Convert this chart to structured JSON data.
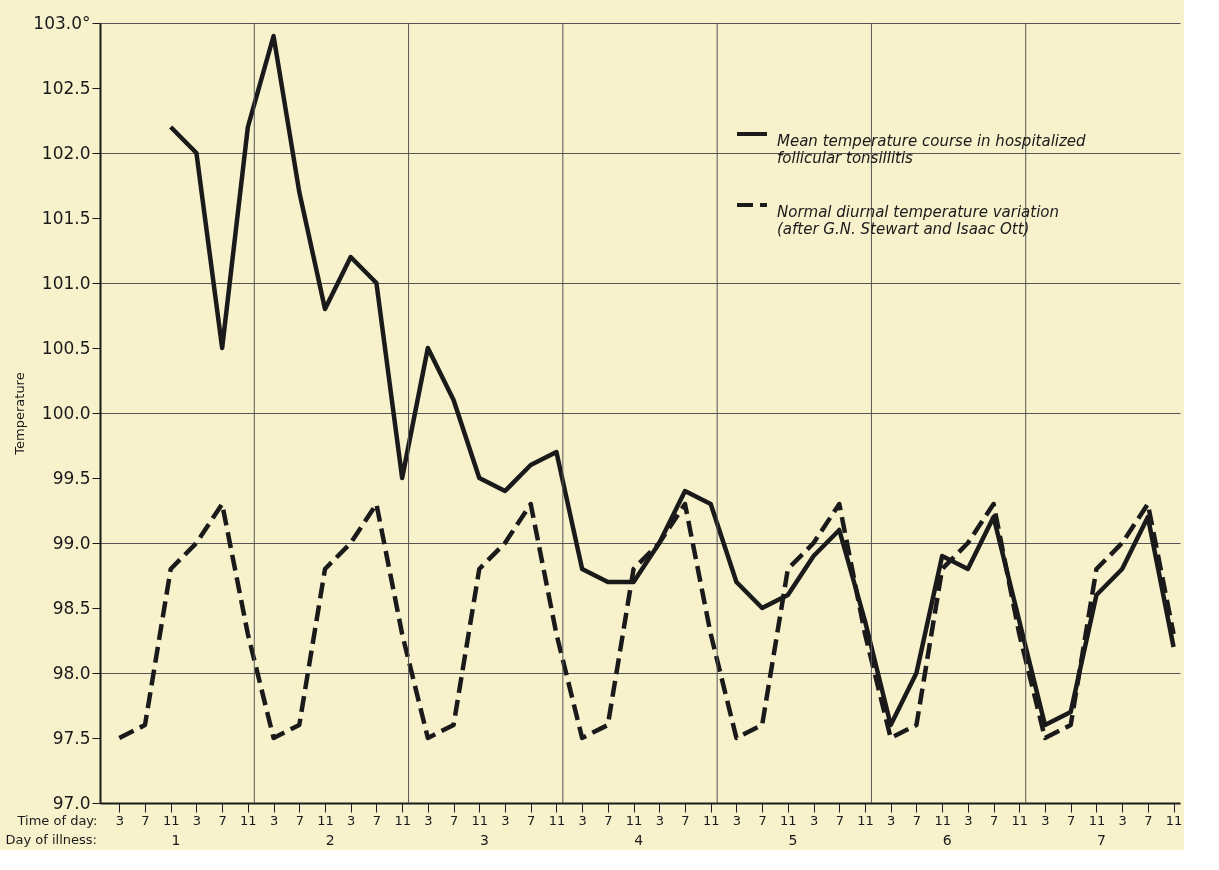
{
  "chart_data": {
    "type": "line",
    "xlabel": "Time of day:",
    "ylabel": "Temperature",
    "annotations": [
      "Day of illness:",
      "1",
      "2",
      "3",
      "4",
      "5",
      "6",
      "7"
    ],
    "categories": [
      "3",
      "7",
      "11",
      "3",
      "7",
      "11",
      "3",
      "7",
      "11",
      "3",
      "7",
      "11",
      "3",
      "7",
      "11",
      "3",
      "7",
      "11",
      "3",
      "7",
      "11",
      "3",
      "7",
      "11",
      "3",
      "7",
      "11",
      "3",
      "7",
      "11",
      "3",
      "7",
      "11",
      "3",
      "7",
      "11",
      "3",
      "7",
      "11",
      "3",
      "7",
      "11"
    ],
    "ylim": [
      97,
      103
    ],
    "yticks": [
      {
        "value": 97,
        "label": "97.0"
      },
      97.5,
      {
        "value": 98,
        "label": "98.0"
      },
      98.5,
      {
        "value": 99,
        "label": "99.0"
      },
      99.5,
      {
        "value": 100,
        "label": "100.0"
      },
      100.5,
      {
        "value": 101,
        "label": "101.0"
      },
      101.5,
      {
        "value": 102,
        "label": "102.0"
      },
      102.5,
      {
        "value": 103,
        "label": "103.0°"
      }
    ],
    "grid": true,
    "legend": "top right",
    "marker": "none",
    "series": [
      {
        "name": "Mean temperature course in hospitalized follicular tonsillitis",
        "color": "#1a1a1a",
        "line_style": "solid",
        "values": [
          null,
          null,
          102.2,
          102.0,
          100.5,
          102.2,
          102.9,
          101.7,
          100.8,
          101.2,
          101.0,
          99.5,
          100.5,
          100.1,
          99.5,
          99.4,
          99.6,
          99.7,
          98.8,
          98.7,
          98.7,
          99.0,
          99.4,
          99.3,
          98.7,
          98.5,
          98.6,
          98.9,
          99.1,
          98.4,
          97.6,
          98.0,
          98.9,
          98.8,
          99.2,
          98.4,
          97.6,
          97.7,
          98.6,
          98.8,
          99.2,
          98.2
        ]
      },
      {
        "name": "Normal diurnal temperature variation (after G.N. Stewart and Isaac Ott)",
        "color": "#1a1a1a",
        "line_style": "dashed",
        "values": [
          97.5,
          97.6,
          98.8,
          99.0,
          99.3,
          98.3,
          97.5,
          97.6,
          98.8,
          99.0,
          99.3,
          98.3,
          97.5,
          97.6,
          98.8,
          99.0,
          99.3,
          98.3,
          97.5,
          97.6,
          98.8,
          99.0,
          99.3,
          98.3,
          97.5,
          97.6,
          98.8,
          99.0,
          99.3,
          98.3,
          97.5,
          97.6,
          98.8,
          99.0,
          99.3,
          98.3,
          97.5,
          97.6,
          98.8,
          99.0,
          99.3,
          98.3
        ]
      }
    ]
  }
}
